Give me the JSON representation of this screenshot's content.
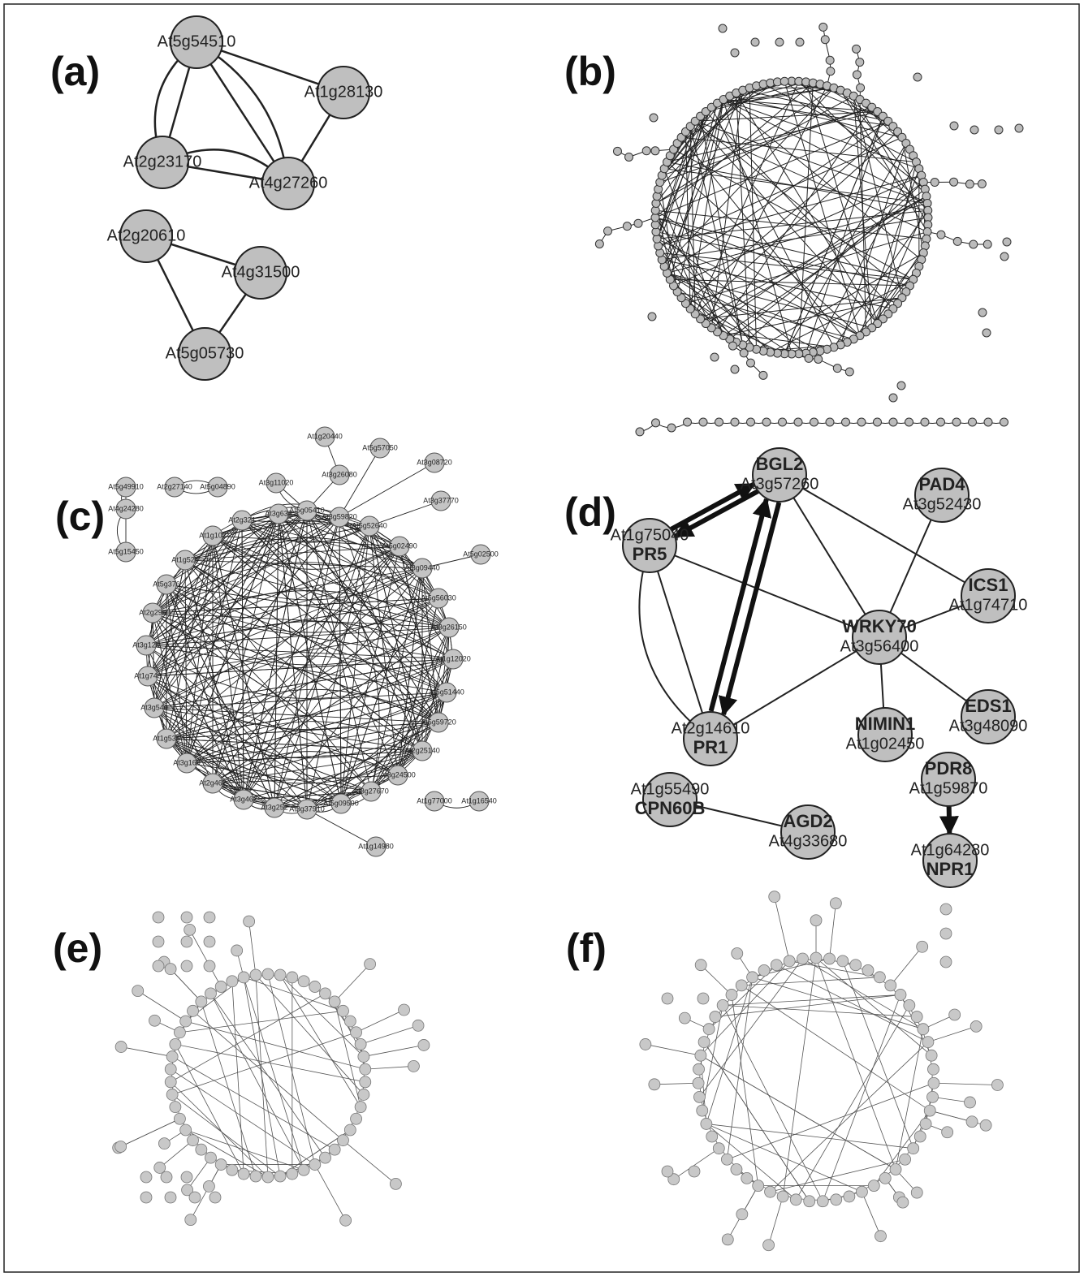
{
  "panels": [
    {
      "label": "(a)",
      "nodes": [
        "At5g54510",
        "At1g28130",
        "At2g23170",
        "At4g27260",
        "At2g20610",
        "At4g31500",
        "At5g05730"
      ]
    },
    {
      "label": "(b)"
    },
    {
      "label": "(c)",
      "nodes": [
        "At5g49910",
        "At2g27140",
        "At5g04890",
        "At1g20440",
        "At5g57050",
        "At3g11020",
        "At3g26080",
        "At3g08720",
        "At4g24280",
        "At3g37770",
        "At5g15450",
        "At3g633",
        "At5g05410",
        "At3g59820",
        "At2g321",
        "At5g52640",
        "At1g102",
        "At5g02490",
        "At5g02500",
        "At1g525",
        "At3g09440",
        "At5g376",
        "At5g56030",
        "At2g295",
        "At3g26150",
        "At3g125",
        "At1g12020",
        "At1g743",
        "At5g51440",
        "At3g540",
        "At5g59720",
        "At1g535",
        "At2g25140",
        "At3g160",
        "At3g24500",
        "At2g462",
        "At3g462",
        "At3g252",
        "At3g37910",
        "At5g09590",
        "At3g27670",
        "At1g77000",
        "At1g16540",
        "At1g14980"
      ]
    },
    {
      "label": "(d)",
      "nodes": [
        {
          "lines": [
            "BGL2",
            "At3g57260"
          ]
        },
        {
          "lines": [
            "PAD4",
            "At3g52430"
          ]
        },
        {
          "lines": [
            "At1g75040",
            "PR5"
          ]
        },
        {
          "lines": [
            "ICS1",
            "At1g74710"
          ]
        },
        {
          "lines": [
            "WRKY70",
            "At3g56400"
          ]
        },
        {
          "lines": [
            "EDS1",
            "At3g48090"
          ]
        },
        {
          "lines": [
            "At2g14610",
            "PR1"
          ]
        },
        {
          "lines": [
            "NIMIN1",
            "At1g02450"
          ]
        },
        {
          "lines": [
            "PDR8",
            "At1g59870"
          ]
        },
        {
          "lines": [
            "At1g55490",
            "CPN60B"
          ]
        },
        {
          "lines": [
            "AGD2",
            "At4g33680"
          ]
        },
        {
          "lines": [
            "At1g64280",
            "NPR1"
          ]
        }
      ]
    },
    {
      "label": "(e)"
    },
    {
      "label": "(f)"
    }
  ]
}
